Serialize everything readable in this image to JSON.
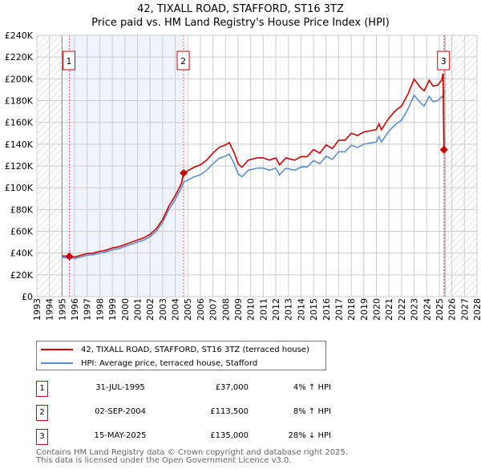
{
  "chart_data": {
    "type": "line",
    "title": "42, TIXALL ROAD, STAFFORD, ST16 3TZ",
    "subtitle": "Price paid vs. HM Land Registry's House Price Index (HPI)",
    "xlim": [
      1993,
      2028
    ],
    "ylim": [
      0,
      240000
    ],
    "x_ticks": [
      "1993",
      "1994",
      "1995",
      "1996",
      "1997",
      "1998",
      "1999",
      "2000",
      "2001",
      "2002",
      "2003",
      "2004",
      "2005",
      "2006",
      "2007",
      "2008",
      "2009",
      "2010",
      "2011",
      "2012",
      "2013",
      "2014",
      "2015",
      "2016",
      "2017",
      "2018",
      "2019",
      "2020",
      "2021",
      "2022",
      "2023",
      "2024",
      "2025",
      "2026",
      "2027",
      "2028"
    ],
    "y_ticks": [
      "£0",
      "£20K",
      "£40K",
      "£60K",
      "£80K",
      "£100K",
      "£120K",
      "£140K",
      "£160K",
      "£180K",
      "£200K",
      "£220K",
      "£240K"
    ],
    "grid": true,
    "series": [
      {
        "name": "42, TIXALL ROAD, STAFFORD, ST16 3TZ (terraced house)",
        "color": "#cc0000",
        "x": [
          1995,
          1995.58,
          1996,
          1996.5,
          1997,
          1997.5,
          1998,
          1998.5,
          1999,
          1999.5,
          2000,
          2000.5,
          2001,
          2001.5,
          2002,
          2002.5,
          2003,
          2003.5,
          2004,
          2004.5,
          2004.67,
          2005,
          2005.5,
          2006,
          2006.5,
          2007,
          2007.5,
          2008,
          2008.3,
          2008.7,
          2009,
          2009.3,
          2009.8,
          2010.5,
          2011,
          2011.5,
          2012,
          2012.3,
          2012.8,
          2013.5,
          2014,
          2014.5,
          2015,
          2015.5,
          2016,
          2016.5,
          2017,
          2017.5,
          2018,
          2018.5,
          2019,
          2019.5,
          2020,
          2020.2,
          2020.4,
          2021,
          2021.5,
          2022,
          2022.5,
          2023,
          2023.5,
          2023.8,
          2024.2,
          2024.5,
          2024.9,
          2025.2,
          2025.3,
          2025.37
        ],
        "y": [
          37400,
          37000,
          36400,
          38000,
          39500,
          40000,
          41600,
          42600,
          44700,
          45800,
          47800,
          49900,
          52000,
          54000,
          57200,
          62400,
          70700,
          83200,
          92600,
          104000,
          113500,
          115600,
          118800,
          121000,
          125300,
          131800,
          137200,
          139300,
          141500,
          131800,
          122000,
          118800,
          125300,
          127400,
          127400,
          125300,
          127400,
          121000,
          127400,
          125300,
          128500,
          128500,
          135000,
          131800,
          139300,
          136000,
          143600,
          143600,
          150000,
          148000,
          151200,
          152300,
          153400,
          158800,
          153400,
          164000,
          170600,
          175000,
          185800,
          199800,
          192000,
          189000,
          198700,
          193300,
          194400,
          199000,
          205000,
          135000
        ]
      },
      {
        "name": "HPI: Average price, terraced house, Stafford",
        "color": "#5b8fd0",
        "x": [
          1995,
          1995.58,
          1996,
          1996.5,
          1997,
          1997.5,
          1998,
          1998.5,
          1999,
          1999.5,
          2000,
          2000.5,
          2001,
          2001.5,
          2002,
          2002.5,
          2003,
          2003.5,
          2004,
          2004.5,
          2004.67,
          2005,
          2005.5,
          2006,
          2006.5,
          2007,
          2007.5,
          2008,
          2008.3,
          2008.7,
          2009,
          2009.3,
          2009.8,
          2010.5,
          2011,
          2011.5,
          2012,
          2012.3,
          2012.8,
          2013.5,
          2014,
          2014.5,
          2015,
          2015.5,
          2016,
          2016.5,
          2017,
          2017.5,
          2018,
          2018.5,
          2019,
          2019.5,
          2020,
          2020.2,
          2020.4,
          2021,
          2021.5,
          2022,
          2022.5,
          2023,
          2023.5,
          2023.8,
          2024.2,
          2024.5,
          2024.9,
          2025.2,
          2025.3,
          2025.37
        ],
        "y": [
          36000,
          35500,
          35000,
          36500,
          38000,
          38500,
          40000,
          41000,
          43000,
          44000,
          46000,
          48000,
          50000,
          52000,
          55000,
          60000,
          68000,
          80000,
          89000,
          100000,
          105000,
          107000,
          110000,
          112000,
          116000,
          122000,
          127000,
          129000,
          131000,
          122000,
          113000,
          110000,
          116000,
          118000,
          118000,
          116000,
          118000,
          112000,
          118000,
          116000,
          119000,
          119000,
          125000,
          122000,
          129000,
          126000,
          133000,
          133000,
          139000,
          137000,
          140000,
          141000,
          142000,
          147000,
          142000,
          152000,
          158000,
          162000,
          172000,
          185000,
          178000,
          175000,
          184000,
          179000,
          180000,
          184000,
          182000,
          190000
        ]
      }
    ],
    "sales": [
      {
        "label": "1",
        "x": 1995.58,
        "y": 37000,
        "date": "31-JUL-1995",
        "price": "£37,000",
        "hpi": "4% ↑ HPI"
      },
      {
        "label": "2",
        "x": 2004.67,
        "y": 113500,
        "date": "02-SEP-2004",
        "price": "£113,500",
        "hpi": "8% ↑ HPI"
      },
      {
        "label": "3",
        "x": 2025.37,
        "y": 135000,
        "date": "15-MAY-2025",
        "price": "£135,000",
        "hpi": "28% ↓ HPI"
      }
    ],
    "legend_placement": "below"
  },
  "footer": {
    "line1": "Contains HM Land Registry data © Crown copyright and database right 2025.",
    "line2": "This data is licensed under the Open Government Licence v3.0."
  }
}
